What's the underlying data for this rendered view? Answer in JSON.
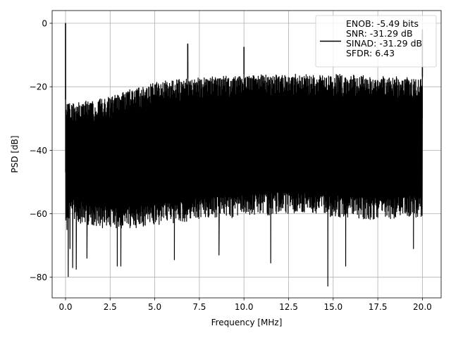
{
  "chart_data": {
    "type": "line",
    "title": "",
    "xlabel": "Frequency [MHz]",
    "ylabel": "PSD [dB]",
    "xlim": [
      -0.75,
      21.05
    ],
    "ylim": [
      -86.5,
      4
    ],
    "xticks": [
      0.0,
      2.5,
      5.0,
      7.5,
      10.0,
      12.5,
      15.0,
      17.5,
      20.0
    ],
    "xtick_labels": [
      "0.0",
      "2.5",
      "5.0",
      "7.5",
      "10.0",
      "12.5",
      "15.0",
      "17.5",
      "20.0"
    ],
    "yticks": [
      0,
      -20,
      -40,
      -60,
      -80
    ],
    "ytick_labels": [
      "0",
      "−20",
      "−40",
      "−60",
      "−80"
    ],
    "grid": true,
    "legend_position": "top-right",
    "legend": [
      "ENOB: -5.49 bits",
      "SNR: -31.29 dB",
      "SINAD: -31.29 dB",
      "SFDR: 6.43"
    ],
    "series": [
      {
        "color": "#000000",
        "description": "dense noise-like PSD spanning 0-20 MHz",
        "upper_envelope": [
          [
            0.0,
            -24
          ],
          [
            0.3,
            -25
          ],
          [
            1.0,
            -24.5
          ],
          [
            2.5,
            -23
          ],
          [
            4.0,
            -20
          ],
          [
            5.0,
            -18.5
          ],
          [
            7.5,
            -17
          ],
          [
            10.0,
            -16
          ],
          [
            12.5,
            -16
          ],
          [
            15.0,
            -16
          ],
          [
            17.5,
            -16.5
          ],
          [
            20.0,
            -17
          ]
        ],
        "lower_envelope": [
          [
            0.0,
            -55
          ],
          [
            2.5,
            -58
          ],
          [
            5.0,
            -57
          ],
          [
            7.5,
            -55
          ],
          [
            10.0,
            -54
          ],
          [
            12.5,
            -53
          ],
          [
            15.0,
            -54
          ],
          [
            17.5,
            -55
          ],
          [
            20.0,
            -54
          ]
        ],
        "peaks": [
          [
            0.0,
            0.0
          ],
          [
            6.85,
            -6.5
          ],
          [
            10.0,
            -7.5
          ],
          [
            20.0,
            -2.0
          ]
        ],
        "dips": [
          [
            0.08,
            -65
          ],
          [
            0.15,
            -79.8
          ],
          [
            0.25,
            -71
          ],
          [
            0.4,
            -77
          ],
          [
            0.6,
            -77.5
          ],
          [
            1.2,
            -74
          ],
          [
            2.9,
            -76.5
          ],
          [
            3.1,
            -76.5
          ],
          [
            6.1,
            -74.5
          ],
          [
            8.6,
            -73
          ],
          [
            11.5,
            -75.5
          ],
          [
            14.7,
            -82.8
          ],
          [
            15.7,
            -76.5
          ],
          [
            19.5,
            -71
          ]
        ]
      }
    ]
  }
}
